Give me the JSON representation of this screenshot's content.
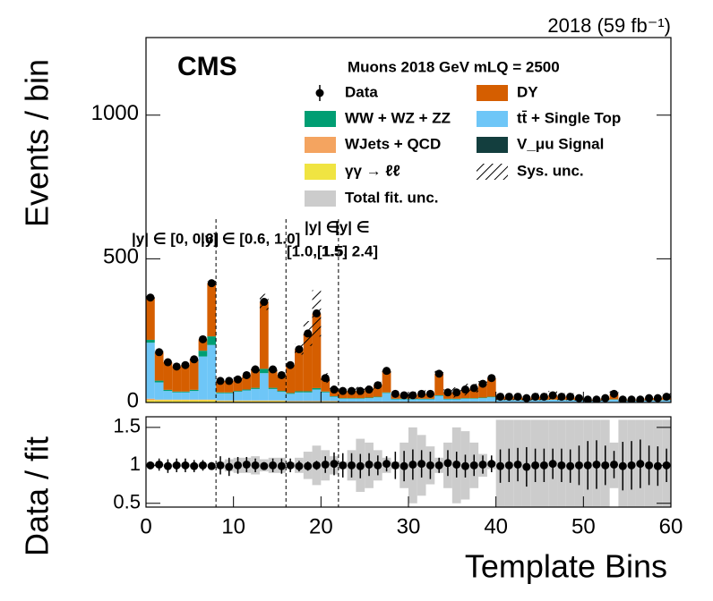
{
  "chart_data": {
    "type": "stacked_histogram",
    "cms_label": "CMS",
    "lumi": "2018 (59 fb⁻¹)",
    "legend_title": "Muons 2018 GeV mLQ = 2500",
    "ylabel": "Events / bin",
    "xlabel": "Template Bins",
    "bins": [
      0,
      1,
      2,
      3,
      4,
      5,
      6,
      7,
      8,
      9,
      10,
      11,
      12,
      13,
      14,
      15,
      16,
      17,
      18,
      19,
      20,
      21,
      22,
      23,
      24,
      25,
      26,
      27,
      28,
      29,
      30,
      31,
      32,
      33,
      34,
      35,
      36,
      37,
      38,
      39,
      40,
      41,
      42,
      43,
      44,
      45,
      46,
      47,
      48,
      49,
      50,
      51,
      52,
      53,
      54,
      55,
      56,
      57,
      58,
      59,
      60
    ],
    "xlim": [
      0,
      60
    ],
    "xticks": [
      0,
      10,
      20,
      30,
      40,
      50,
      60
    ],
    "ylim": [
      0,
      1270
    ],
    "yticks": [
      0,
      500,
      1000
    ],
    "data": {
      "name": "Data",
      "color": "#000000",
      "values": [
        365,
        175,
        140,
        125,
        130,
        150,
        220,
        415,
        75,
        75,
        80,
        95,
        115,
        350,
        115,
        95,
        130,
        185,
        240,
        310,
        85,
        45,
        40,
        40,
        40,
        45,
        60,
        110,
        30,
        25,
        25,
        30,
        30,
        100,
        35,
        35,
        45,
        50,
        65,
        85,
        20,
        20,
        20,
        15,
        20,
        20,
        25,
        20,
        20,
        15,
        10,
        10,
        15,
        30,
        10,
        10,
        10,
        15,
        15,
        20
      ]
    },
    "series": [
      {
        "name": "γγ → ℓℓ",
        "color": "#f0e442",
        "values": [
          8,
          8,
          8,
          8,
          8,
          8,
          8,
          8,
          5,
          5,
          5,
          5,
          5,
          5,
          5,
          5,
          3,
          3,
          3,
          3,
          3,
          3,
          2,
          2,
          2,
          2,
          2,
          2,
          2,
          2,
          2,
          2,
          2,
          2,
          2,
          2,
          2,
          2,
          2,
          2,
          1,
          1,
          1,
          1,
          1,
          1,
          1,
          1,
          1,
          1,
          1,
          1,
          1,
          1,
          1,
          1,
          1,
          1,
          1,
          1
        ]
      },
      {
        "name": "WJets + QCD",
        "color": "#f4a460",
        "values": [
          5,
          2,
          2,
          2,
          2,
          2,
          2,
          2,
          2,
          2,
          2,
          2,
          2,
          2,
          2,
          2,
          2,
          2,
          2,
          2,
          2,
          2,
          1,
          1,
          1,
          1,
          1,
          1,
          1,
          1,
          1,
          1,
          1,
          1,
          1,
          1,
          1,
          1,
          1,
          1,
          1,
          1,
          1,
          1,
          1,
          1,
          1,
          1,
          1,
          1,
          1,
          1,
          1,
          1,
          1,
          1,
          1,
          1,
          1,
          1
        ]
      },
      {
        "name": "tt̄ + Single Top",
        "color": "#6ec6f7",
        "values": [
          195,
          60,
          30,
          25,
          25,
          30,
          150,
          190,
          25,
          25,
          30,
          35,
          40,
          95,
          40,
          30,
          25,
          30,
          30,
          40,
          30,
          15,
          10,
          10,
          10,
          12,
          15,
          30,
          8,
          8,
          8,
          8,
          8,
          20,
          8,
          8,
          10,
          10,
          12,
          15,
          6,
          6,
          6,
          5,
          6,
          6,
          7,
          6,
          6,
          5,
          4,
          4,
          5,
          8,
          4,
          4,
          4,
          5,
          5,
          6
        ]
      },
      {
        "name": "WW + WZ + ZZ",
        "color": "#009e73",
        "values": [
          10,
          6,
          4,
          3,
          3,
          4,
          20,
          30,
          3,
          3,
          3,
          3,
          4,
          15,
          4,
          3,
          3,
          4,
          4,
          5,
          3,
          2,
          2,
          2,
          2,
          2,
          2,
          2,
          2,
          2,
          2,
          2,
          2,
          2,
          2,
          2,
          2,
          2,
          2,
          2,
          1,
          1,
          1,
          1,
          1,
          1,
          1,
          1,
          1,
          1,
          1,
          1,
          1,
          1,
          1,
          1,
          1,
          1,
          1,
          1
        ]
      },
      {
        "name": "DY",
        "color": "#d55e00",
        "values": [
          147,
          99,
          96,
          87,
          92,
          106,
          40,
          185,
          40,
          40,
          40,
          50,
          64,
          233,
          64,
          55,
          97,
          146,
          201,
          260,
          47,
          23,
          25,
          25,
          25,
          28,
          40,
          75,
          17,
          12,
          12,
          17,
          17,
          75,
          22,
          22,
          30,
          35,
          48,
          65,
          11,
          11,
          11,
          7,
          11,
          11,
          15,
          11,
          11,
          7,
          3,
          3,
          7,
          19,
          3,
          3,
          3,
          7,
          7,
          11
        ]
      },
      {
        "name": "V_μu Signal",
        "color": "#133e3e",
        "values": [
          0,
          0,
          0,
          0,
          0,
          0,
          0,
          0,
          0,
          0,
          0,
          0,
          0,
          0,
          0,
          0,
          0,
          0,
          0,
          0,
          0,
          0,
          0,
          0,
          0,
          0,
          0,
          0,
          0,
          0,
          0,
          0,
          0,
          0,
          0,
          0,
          0,
          0,
          0,
          0,
          0,
          0,
          0,
          0,
          0,
          0,
          0,
          0,
          0,
          0,
          0,
          0,
          0,
          0,
          0,
          0,
          0,
          0,
          0,
          0
        ]
      }
    ],
    "sys_unc_label": "Sys. unc.",
    "region_edges": [
      8,
      16,
      22
    ],
    "region_labels": [
      [
        "|y| ∈ [0, 0.6]"
      ],
      [
        "|y| ∈ [0.6, 1.0]"
      ],
      [
        "|y| ∈",
        "[1.0, 1.5]"
      ],
      [
        "|y| ∈",
        "[1.5, 2.4]"
      ]
    ],
    "ratio": {
      "ylabel": "Data / fit",
      "ylim": [
        0.45,
        1.64
      ],
      "yticks": [
        0.5,
        1,
        1.5
      ],
      "values": [
        1.0,
        1.01,
        0.99,
        1.0,
        1.0,
        0.99,
        1.0,
        0.99,
        1.0,
        0.98,
        1.0,
        1.01,
        1.0,
        0.99,
        1.0,
        0.99,
        1.0,
        0.99,
        0.99,
        1.0,
        1.01,
        1.02,
        1.0,
        1.0,
        0.99,
        1.01,
        1.0,
        1.02,
        1.0,
        0.99,
        1.01,
        1.02,
        1.0,
        1.0,
        1.03,
        1.01,
        0.99,
        1.0,
        1.01,
        1.02,
        0.99,
        1.0,
        1.01,
        0.98,
        1.0,
        1.0,
        1.02,
        1.0,
        0.99,
        1.0,
        1.0,
        1.01,
        1.0,
        1.01,
        0.99,
        1.0,
        1.02,
        1.0,
        0.99,
        1.0
      ],
      "errors": [
        0.05,
        0.08,
        0.09,
        0.09,
        0.09,
        0.08,
        0.07,
        0.05,
        0.12,
        0.12,
        0.11,
        0.1,
        0.09,
        0.05,
        0.09,
        0.1,
        0.09,
        0.07,
        0.06,
        0.06,
        0.11,
        0.15,
        0.16,
        0.16,
        0.16,
        0.15,
        0.13,
        0.1,
        0.18,
        0.2,
        0.2,
        0.18,
        0.18,
        0.1,
        0.17,
        0.17,
        0.15,
        0.14,
        0.12,
        0.11,
        0.22,
        0.22,
        0.22,
        0.26,
        0.22,
        0.22,
        0.2,
        0.22,
        0.22,
        0.26,
        0.32,
        0.32,
        0.26,
        0.18,
        0.32,
        0.32,
        0.32,
        0.26,
        0.26,
        0.22
      ],
      "fit_unc": [
        0.02,
        0.02,
        0.02,
        0.02,
        0.02,
        0.02,
        0.02,
        0.02,
        0.05,
        0.08,
        0.1,
        0.1,
        0.12,
        0.08,
        0.1,
        0.1,
        0.04,
        0.1,
        0.18,
        0.26,
        0.2,
        0.12,
        0.05,
        0.2,
        0.35,
        0.3,
        0.2,
        0.1,
        0.05,
        0.3,
        0.5,
        0.4,
        0.25,
        0.1,
        0.3,
        0.5,
        0.45,
        0.3,
        0.15,
        0.05,
        0.6,
        0.6,
        0.6,
        0.6,
        0.6,
        0.6,
        0.6,
        0.6,
        0.6,
        0.6,
        0.6,
        0.6,
        0.6,
        0.3,
        0.6,
        0.6,
        0.6,
        0.6,
        0.6,
        0.6
      ],
      "fit_unc_label": "Total fit. unc.",
      "fit_unc_color": "#cccccc"
    }
  }
}
